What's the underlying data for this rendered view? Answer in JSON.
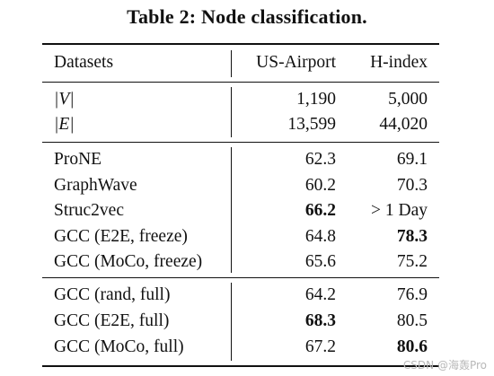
{
  "caption": "Table 2: Node classification.",
  "header": {
    "col1": "Datasets",
    "col2": "US-Airport",
    "col3": "H-index"
  },
  "stats": [
    {
      "name": "|V|",
      "us_airport": "1,190",
      "h_index": "5,000"
    },
    {
      "name": "|E|",
      "us_airport": "13,599",
      "h_index": "44,020"
    }
  ],
  "group1": [
    {
      "name": "ProNE",
      "us_airport": "62.3",
      "h_index": "69.1",
      "us_bold": false,
      "h_bold": false
    },
    {
      "name": "GraphWave",
      "us_airport": "60.2",
      "h_index": "70.3",
      "us_bold": false,
      "h_bold": false
    },
    {
      "name": "Struc2vec",
      "us_airport": "66.2",
      "h_index": "> 1 Day",
      "us_bold": true,
      "h_bold": false
    },
    {
      "name": "GCC (E2E, freeze)",
      "us_airport": "64.8",
      "h_index": "78.3",
      "us_bold": false,
      "h_bold": true
    },
    {
      "name": "GCC (MoCo, freeze)",
      "us_airport": "65.6",
      "h_index": "75.2",
      "us_bold": false,
      "h_bold": false
    }
  ],
  "group2": [
    {
      "name": "GCC (rand, full)",
      "us_airport": "64.2",
      "h_index": "76.9",
      "us_bold": false,
      "h_bold": false
    },
    {
      "name": "GCC (E2E, full)",
      "us_airport": "68.3",
      "h_index": "80.5",
      "us_bold": true,
      "h_bold": false
    },
    {
      "name": "GCC (MoCo, full)",
      "us_airport": "67.2",
      "h_index": "80.6",
      "us_bold": false,
      "h_bold": true
    }
  ],
  "watermark": "CSDN @海轰Pro",
  "colors": {
    "text": "#111111",
    "rule": "#111111",
    "watermark": "#b8b8b8"
  }
}
